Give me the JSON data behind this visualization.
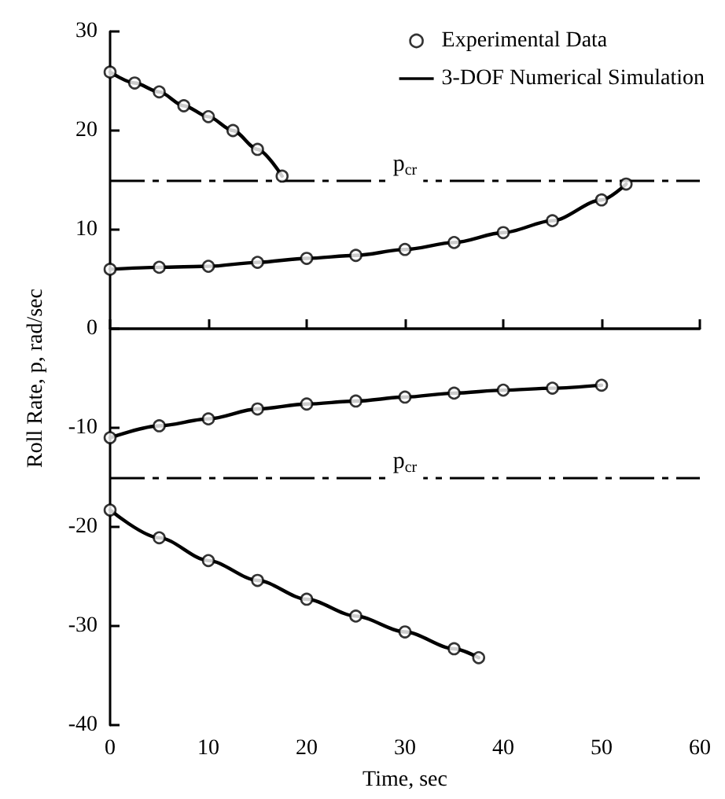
{
  "chart_data": {
    "type": "line",
    "xlabel": "Time, sec",
    "ylabel": "Roll Rate, p, rad/sec",
    "xlim": [
      0,
      60
    ],
    "xticks": [
      0,
      10,
      20,
      30,
      40,
      50,
      60
    ],
    "ylim": [
      -40,
      30
    ],
    "yticks": [
      -40,
      -30,
      -20,
      -10,
      0,
      10,
      20,
      30
    ],
    "grid": false,
    "legend": "top right",
    "ref_lines": [
      {
        "axis": "y",
        "value": 0,
        "line_style": "solid",
        "color": "#000000"
      },
      {
        "axis": "y",
        "value": 15,
        "label": "p$_{cr}$",
        "line_style": "dashed",
        "color": "#000000"
      },
      {
        "axis": "y",
        "value": -15,
        "label": "p$_{cr}$",
        "line_style": "dashed",
        "color": "#000000"
      }
    ],
    "series": [
      {
        "name": "Experimental Data",
        "type": "scatter",
        "marker": "circle",
        "color": "#000000",
        "x": [
          0,
          2.5,
          5,
          7.5,
          10,
          12.5,
          15,
          17.5,
          0,
          5,
          10,
          15,
          20,
          25,
          30,
          35,
          40,
          45,
          50,
          52.5,
          0,
          5,
          10,
          15,
          20,
          25,
          30,
          35,
          40,
          45,
          50,
          0,
          5,
          10,
          15,
          20,
          25,
          30,
          35,
          37.5
        ],
        "values": [
          25.9,
          24.8,
          23.9,
          22.5,
          21.4,
          20.0,
          18.1,
          15.4,
          6.0,
          6.2,
          6.3,
          6.7,
          7.1,
          7.4,
          8.0,
          8.7,
          9.7,
          10.9,
          13.0,
          14.6,
          -11.0,
          -9.8,
          -9.1,
          -8.1,
          -7.6,
          -7.3,
          -6.9,
          -6.5,
          -6.2,
          -6.0,
          -5.7,
          -18.3,
          -21.1,
          -23.4,
          -25.4,
          -27.3,
          -29.0,
          -30.6,
          -32.3,
          -33.2
        ]
      },
      {
        "name": "3-DOF Numerical Simulation",
        "marker": "none",
        "line_style": "solid",
        "color": "#000000",
        "x": [
          0,
          2.5,
          5,
          7.5,
          10,
          12.5,
          15,
          17.5
        ],
        "values": [
          25.9,
          24.8,
          23.9,
          22.5,
          21.4,
          20.0,
          18.1,
          15.4
        ]
      },
      {
        "marker": "none",
        "line_style": "solid",
        "color": "#000000",
        "x": [
          0,
          5,
          10,
          15,
          20,
          25,
          30,
          35,
          40,
          45,
          50,
          52.5
        ],
        "values": [
          6.0,
          6.2,
          6.3,
          6.7,
          7.1,
          7.4,
          8.0,
          8.7,
          9.7,
          10.9,
          13.0,
          14.6
        ]
      },
      {
        "marker": "none",
        "line_style": "solid",
        "color": "#000000",
        "x": [
          0,
          5,
          10,
          15,
          20,
          25,
          30,
          35,
          40,
          45,
          50
        ],
        "values": [
          -11.0,
          -9.8,
          -9.1,
          -8.1,
          -7.6,
          -7.3,
          -6.9,
          -6.5,
          -6.2,
          -6.0,
          -5.7
        ]
      },
      {
        "marker": "none",
        "line_style": "solid",
        "color": "#000000",
        "x": [
          0,
          5,
          10,
          15,
          20,
          25,
          30,
          35,
          37.5
        ],
        "values": [
          -18.3,
          -21.1,
          -23.4,
          -25.4,
          -27.3,
          -29.0,
          -30.6,
          -32.3,
          -33.2
        ]
      }
    ]
  }
}
